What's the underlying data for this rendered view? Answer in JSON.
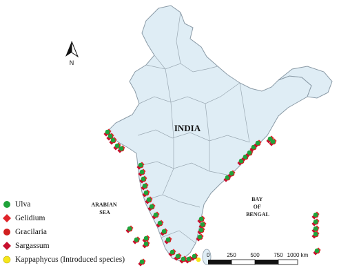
{
  "map": {
    "country_label": "INDIA",
    "seas": {
      "arabian": [
        "ARABIAN",
        "SEA"
      ],
      "bengal": [
        "BAY",
        "OF",
        "BENGAL"
      ]
    },
    "north_label": "N",
    "colors": {
      "land": "#dfedf5",
      "border": "#8a9aa6",
      "ulva": "#1fa33a",
      "gelidium": "#e0242a",
      "gracilaria": "#d11f1f",
      "sargassum": "#c8102e",
      "kappaphycus": "#f6e61a"
    }
  },
  "legend": {
    "items": [
      {
        "label": "Ulva",
        "shape": "circle",
        "color": "#1fa33a"
      },
      {
        "label": "Gelidium",
        "shape": "diamond",
        "color": "#e0242a"
      },
      {
        "label": "Gracilaria",
        "shape": "circle",
        "color": "#d11f1f"
      },
      {
        "label": "Sargassum",
        "shape": "diamond",
        "color": "#c8102e"
      },
      {
        "label": "Kappaphycus  (Introduced species)",
        "shape": "circle",
        "color": "#f6e61a"
      }
    ]
  },
  "scale_bar": {
    "ticks": [
      "0",
      "250",
      "500",
      "750",
      "1000 km"
    ]
  }
}
